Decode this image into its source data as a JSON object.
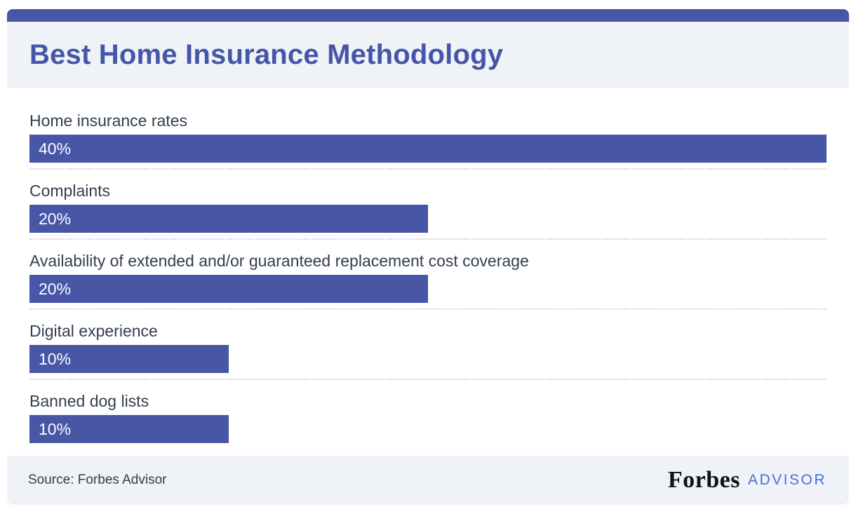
{
  "accent_color": "#4756A5",
  "panel_background": "#EFF2F7",
  "header": {
    "title": "Best Home Insurance Methodology",
    "title_color": "#4456A8"
  },
  "chart_data": {
    "type": "bar",
    "orientation": "horizontal",
    "title": "Best Home Insurance Methodology",
    "categories": [
      "Home insurance rates",
      "Complaints",
      "Availability of extended and/or guaranteed replacement cost coverage",
      "Digital experience",
      "Banned dog lists"
    ],
    "values": [
      40,
      20,
      20,
      10,
      10
    ],
    "value_labels": [
      "40%",
      "20%",
      "20%",
      "10%",
      "10%"
    ],
    "value_suffix": "%",
    "xlim": [
      0,
      40
    ],
    "grid": false,
    "legend": "none",
    "bar_color": "#4756A5",
    "bar_value_text_color": "#FFFFFF",
    "row_separator_style": "dotted"
  },
  "footer": {
    "source": "Source: Forbes Advisor",
    "logo": {
      "forbes": "Forbes",
      "advisor": "ADVISOR"
    }
  }
}
